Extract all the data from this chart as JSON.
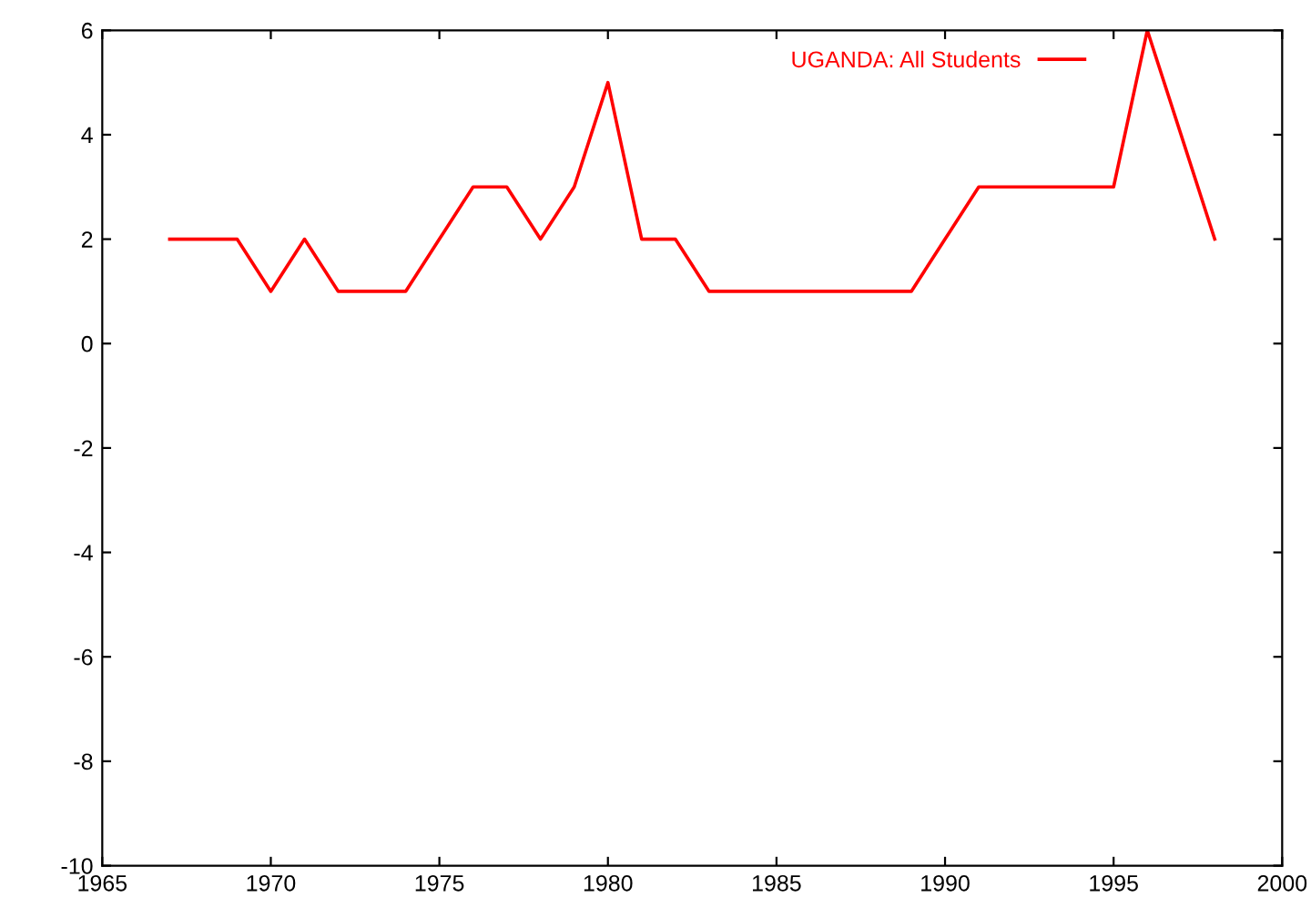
{
  "chart_data": {
    "type": "line",
    "x": [
      1967,
      1968,
      1969,
      1970,
      1971,
      1972,
      1973,
      1974,
      1975,
      1976,
      1977,
      1978,
      1979,
      1980,
      1981,
      1982,
      1983,
      1984,
      1985,
      1986,
      1987,
      1988,
      1989,
      1990,
      1991,
      1992,
      1993,
      1994,
      1995,
      1996,
      1997,
      1998
    ],
    "series": [
      {
        "name": "UGANDA: All Students",
        "color": "#ff0000",
        "values": [
          2,
          2,
          2,
          1,
          2,
          1,
          1,
          1,
          2,
          3,
          3,
          2,
          3,
          5,
          2,
          2,
          1,
          1,
          1,
          1,
          1,
          1,
          1,
          2,
          3,
          3,
          3,
          3,
          3,
          6,
          4,
          2
        ]
      }
    ],
    "xlim": [
      1965,
      2000
    ],
    "xticks": [
      1965,
      1970,
      1975,
      1980,
      1985,
      1990,
      1995,
      2000
    ],
    "ylim": [
      -10,
      6
    ],
    "yticks": [
      -10,
      -8,
      -6,
      -4,
      -2,
      0,
      2,
      4,
      6
    ],
    "grid": false,
    "legend": "top right",
    "marker": "none",
    "line_style": "solid"
  }
}
